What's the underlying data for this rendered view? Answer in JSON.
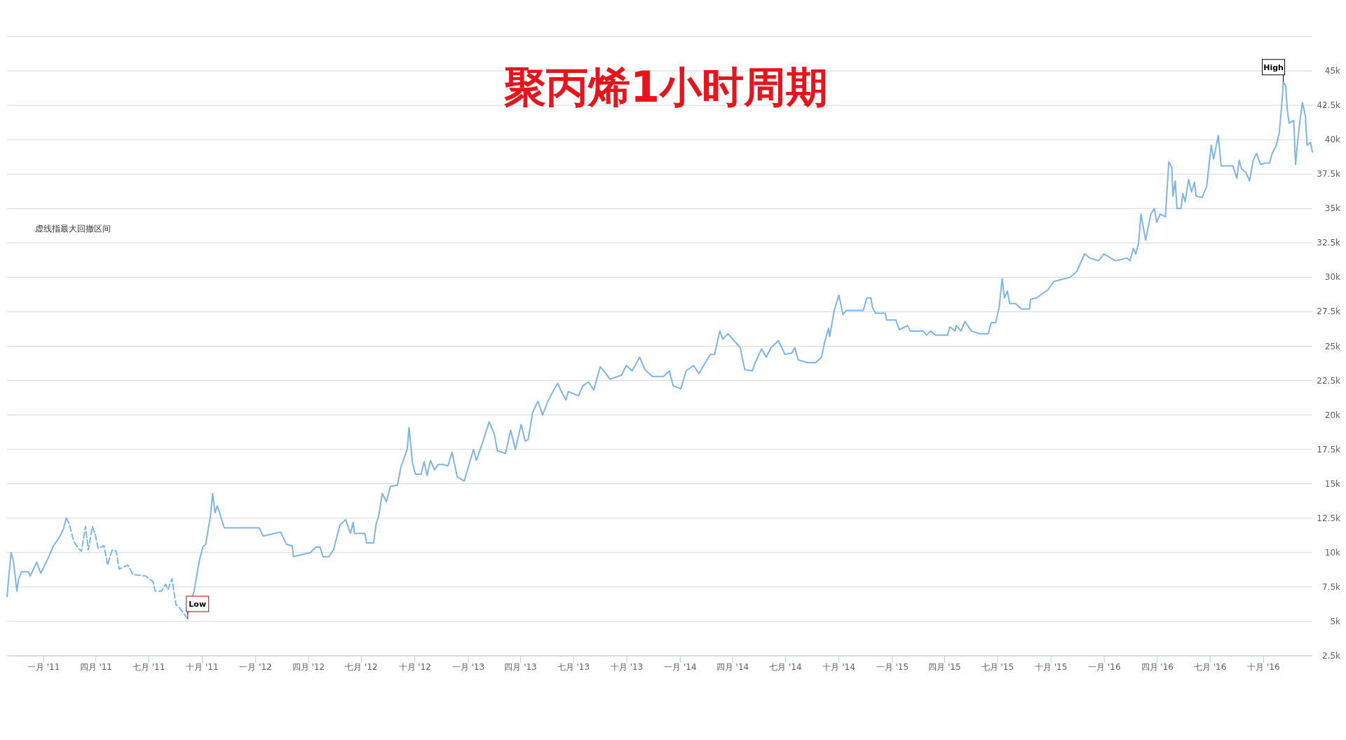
{
  "chart_data": {
    "type": "line",
    "title": "聚丙烯1小时周期",
    "xlim": [
      "2010-10-30",
      "2016-12-24"
    ],
    "ylim": [
      2500,
      47500
    ],
    "xticks": [
      {
        "value": "2011-01-01",
        "label": "一月 '11"
      },
      {
        "value": "2011-04-01",
        "label": "四月 '11"
      },
      {
        "value": "2011-07-01",
        "label": "七月 '11"
      },
      {
        "value": "2011-10-01",
        "label": "十月 '11"
      },
      {
        "value": "2012-01-01",
        "label": "一月 '12"
      },
      {
        "value": "2012-04-01",
        "label": "四月 '12"
      },
      {
        "value": "2012-07-01",
        "label": "七月 '12"
      },
      {
        "value": "2012-10-01",
        "label": "十月 '12"
      },
      {
        "value": "2013-01-01",
        "label": "一月 '13"
      },
      {
        "value": "2013-04-01",
        "label": "四月 '13"
      },
      {
        "value": "2013-07-01",
        "label": "七月 '13"
      },
      {
        "value": "2013-10-01",
        "label": "十月 '13"
      },
      {
        "value": "2014-01-01",
        "label": "一月 '14"
      },
      {
        "value": "2014-04-01",
        "label": "四月 '14"
      },
      {
        "value": "2014-07-01",
        "label": "七月 '14"
      },
      {
        "value": "2014-10-01",
        "label": "十月 '14"
      },
      {
        "value": "2015-01-01",
        "label": "一月 '15"
      },
      {
        "value": "2015-04-01",
        "label": "四月 '15"
      },
      {
        "value": "2015-07-01",
        "label": "七月 '15"
      },
      {
        "value": "2015-10-01",
        "label": "十月 '15"
      },
      {
        "value": "2016-01-01",
        "label": "一月 '16"
      },
      {
        "value": "2016-04-01",
        "label": "四月 '16"
      },
      {
        "value": "2016-07-01",
        "label": "七月 '16"
      },
      {
        "value": "2016-10-01",
        "label": "十月 '16"
      }
    ],
    "yticks": [
      {
        "value": 2500,
        "label": "2.5k"
      },
      {
        "value": 5000,
        "label": "5k"
      },
      {
        "value": 7500,
        "label": "7.5k"
      },
      {
        "value": 10000,
        "label": "10k"
      },
      {
        "value": 12500,
        "label": "12.5k"
      },
      {
        "value": 15000,
        "label": "15k"
      },
      {
        "value": 17500,
        "label": "17.5k"
      },
      {
        "value": 20000,
        "label": "20k"
      },
      {
        "value": 22500,
        "label": "22.5k"
      },
      {
        "value": 25000,
        "label": "25k"
      },
      {
        "value": 27500,
        "label": "27.5k"
      },
      {
        "value": 30000,
        "label": "30k"
      },
      {
        "value": 32500,
        "label": "32.5k"
      },
      {
        "value": 35000,
        "label": "35k"
      },
      {
        "value": 37500,
        "label": "37.5k"
      },
      {
        "value": 40000,
        "label": "40k"
      },
      {
        "value": 42500,
        "label": "42.5k"
      },
      {
        "value": 45000,
        "label": "45k"
      },
      {
        "value": 47500,
        "label": null
      }
    ],
    "grid": "y",
    "series": [
      {
        "color": "#7cb5ec",
        "line_style": "solid",
        "x": [
          "2010-10-30",
          "2010-11-06",
          "2010-11-10",
          "2010-11-16",
          "2010-11-19",
          "2010-11-24",
          "2010-12-06",
          "2010-12-09",
          "2010-12-20",
          "2010-12-27",
          "2011-01-09",
          "2011-01-18",
          "2011-01-28",
          "2011-02-04",
          "2011-02-09"
        ],
        "values": [
          6800,
          10000,
          9400,
          7200,
          8100,
          8600,
          8600,
          8300,
          9300,
          8500,
          9600,
          10500,
          11100,
          11700,
          12500
        ]
      },
      {
        "color": "#7cb5ec",
        "line_style": "dashed",
        "x": [
          "2011-02-09",
          "2011-02-14",
          "2011-02-22",
          "2011-03-02",
          "2011-03-07",
          "2011-03-14",
          "2011-03-19",
          "2011-03-26",
          "2011-03-31",
          "2011-04-05",
          "2011-04-15",
          "2011-04-21",
          "2011-04-29",
          "2011-05-06",
          "2011-05-11",
          "2011-05-26",
          "2011-06-04",
          "2011-06-26",
          "2011-07-08",
          "2011-07-12",
          "2011-07-23",
          "2011-07-30",
          "2011-08-03",
          "2011-08-10",
          "2011-08-17",
          "2011-08-21",
          "2011-09-06"
        ],
        "values": [
          12500,
          12100,
          10800,
          10300,
          10100,
          11900,
          10200,
          11900,
          11300,
          10300,
          10500,
          9100,
          10200,
          10100,
          8800,
          9100,
          8400,
          8300,
          7900,
          7200,
          7200,
          7700,
          7300,
          8100,
          6200,
          6100,
          5200
        ]
      },
      {
        "color": "#7cb5ec",
        "line_style": "solid",
        "x": [
          "2011-09-06",
          "2011-09-17",
          "2011-09-26",
          "2011-10-02",
          "2011-10-07",
          "2011-10-15",
          "2011-10-19",
          "2011-10-23",
          "2011-10-27",
          "2011-11-08",
          "2011-11-14",
          "2012-01-07",
          "2012-01-14",
          "2012-02-03",
          "2012-02-13",
          "2012-02-23",
          "2012-03-04",
          "2012-03-06",
          "2012-04-04",
          "2012-04-14",
          "2012-04-21",
          "2012-04-26",
          "2012-05-06",
          "2012-05-14",
          "2012-05-25",
          "2012-06-04",
          "2012-06-12",
          "2012-06-17",
          "2012-06-19",
          "2012-07-07",
          "2012-07-10",
          "2012-07-22",
          "2012-07-26",
          "2012-07-31",
          "2012-08-06",
          "2012-08-13",
          "2012-08-20",
          "2012-09-01",
          "2012-09-07",
          "2012-09-18",
          "2012-09-21",
          "2012-09-27",
          "2012-10-02",
          "2012-10-12",
          "2012-10-17",
          "2012-10-22",
          "2012-10-28",
          "2012-11-04",
          "2012-11-10",
          "2012-11-19",
          "2012-11-27",
          "2012-12-04",
          "2012-12-13",
          "2012-12-25",
          "2013-01-10",
          "2013-01-15",
          "2013-01-25",
          "2013-02-06",
          "2013-02-15",
          "2013-02-20",
          "2013-03-06",
          "2013-03-15",
          "2013-03-23",
          "2013-04-02",
          "2013-04-09",
          "2013-04-14",
          "2013-04-22",
          "2013-05-01",
          "2013-05-09",
          "2013-05-18",
          "2013-05-28",
          "2013-06-04",
          "2013-06-09",
          "2013-06-18",
          "2013-06-22",
          "2013-07-10",
          "2013-07-17",
          "2013-07-27",
          "2013-08-05",
          "2013-08-16",
          "2013-08-26",
          "2013-09-02",
          "2013-09-22",
          "2013-09-30",
          "2013-10-10",
          "2013-10-23",
          "2013-11-01",
          "2013-11-14",
          "2013-12-03",
          "2013-12-13",
          "2013-12-20",
          "2014-01-02",
          "2014-01-11",
          "2014-01-24",
          "2014-02-02",
          "2014-02-13",
          "2014-02-22",
          "2014-03-01",
          "2014-03-10",
          "2014-03-15",
          "2014-03-24",
          "2014-04-14",
          "2014-04-22",
          "2014-05-05",
          "2014-05-10",
          "2014-05-21",
          "2014-05-29",
          "2014-06-06",
          "2014-06-19",
          "2014-06-30",
          "2014-07-12",
          "2014-07-17",
          "2014-07-23",
          "2014-08-08",
          "2014-08-22",
          "2014-09-01",
          "2014-09-07",
          "2014-09-13",
          "2014-09-15",
          "2014-09-23",
          "2014-10-01",
          "2014-10-08",
          "2014-10-14",
          "2014-11-12",
          "2014-11-18",
          "2014-11-25",
          "2014-11-28",
          "2014-12-03",
          "2014-12-20",
          "2014-12-22",
          "2015-01-07",
          "2015-01-13",
          "2015-01-27",
          "2015-02-01",
          "2015-02-23",
          "2015-03-01",
          "2015-03-08",
          "2015-03-16",
          "2015-04-06",
          "2015-04-10",
          "2015-04-19",
          "2015-04-21",
          "2015-04-29",
          "2015-05-06",
          "2015-05-17",
          "2015-05-31",
          "2015-06-15",
          "2015-06-20",
          "2015-06-28",
          "2015-07-04",
          "2015-07-09",
          "2015-07-13",
          "2015-07-18",
          "2015-07-22",
          "2015-08-01",
          "2015-08-11",
          "2015-08-25",
          "2015-08-27",
          "2015-09-06",
          "2015-09-26",
          "2015-10-06",
          "2015-11-03",
          "2015-11-14",
          "2015-11-28",
          "2015-12-07",
          "2015-12-22",
          "2015-12-31",
          "2016-01-20",
          "2016-02-09",
          "2016-02-14",
          "2016-02-20",
          "2016-02-24",
          "2016-02-29",
          "2016-03-04",
          "2016-03-12",
          "2016-03-21",
          "2016-03-27",
          "2016-03-31",
          "2016-04-06",
          "2016-04-15",
          "2016-04-21",
          "2016-04-26",
          "2016-04-28",
          "2016-05-02",
          "2016-05-05",
          "2016-05-12",
          "2016-05-15",
          "2016-05-19",
          "2016-05-25",
          "2016-05-30",
          "2016-06-04",
          "2016-06-07",
          "2016-06-17",
          "2016-06-25",
          "2016-07-03",
          "2016-07-07",
          "2016-07-15",
          "2016-07-20",
          "2016-08-09",
          "2016-08-16",
          "2016-08-20",
          "2016-08-24",
          "2016-09-01",
          "2016-09-07",
          "2016-09-13",
          "2016-09-19",
          "2016-09-26",
          "2016-10-04",
          "2016-10-11",
          "2016-10-16",
          "2016-10-23",
          "2016-10-28",
          "2016-11-02",
          "2016-11-04",
          "2016-11-08",
          "2016-11-11",
          "2016-11-14",
          "2016-11-22",
          "2016-11-25",
          "2016-11-28",
          "2016-12-03",
          "2016-12-07",
          "2016-12-12",
          "2016-12-15",
          "2016-12-21",
          "2016-12-24"
        ],
        "values": [
          5500,
          7200,
          9400,
          10400,
          10600,
          12600,
          14300,
          12900,
          13400,
          11800,
          11800,
          11800,
          11200,
          11400,
          11500,
          10600,
          10500,
          9700,
          10000,
          10400,
          10400,
          9700,
          9700,
          10200,
          12000,
          12400,
          11400,
          12200,
          11400,
          11400,
          10700,
          10700,
          12000,
          12700,
          14300,
          13700,
          14800,
          14900,
          16200,
          17500,
          19100,
          16500,
          15700,
          15700,
          16600,
          15600,
          16700,
          16000,
          16400,
          16400,
          16300,
          17300,
          15500,
          15200,
          17500,
          16700,
          17900,
          19500,
          18600,
          17400,
          17200,
          18900,
          17500,
          19300,
          18100,
          18200,
          20200,
          21000,
          20000,
          21000,
          21800,
          22300,
          21800,
          21100,
          21700,
          21400,
          22100,
          22400,
          21800,
          23500,
          23000,
          22600,
          22900,
          23600,
          23200,
          24200,
          23300,
          22800,
          22800,
          23200,
          22100,
          21900,
          23200,
          23600,
          23000,
          23800,
          24400,
          24400,
          26100,
          25500,
          25900,
          24900,
          23300,
          23200,
          23800,
          24800,
          24200,
          24900,
          25400,
          24400,
          24500,
          24900,
          24000,
          23800,
          23800,
          24200,
          25400,
          26300,
          25700,
          27600,
          28700,
          27300,
          27600,
          27600,
          28500,
          28500,
          27800,
          27400,
          27400,
          26900,
          26900,
          26200,
          26500,
          26100,
          26100,
          25800,
          26100,
          25800,
          25800,
          26400,
          26100,
          26500,
          26100,
          26800,
          26100,
          25900,
          25900,
          26700,
          26700,
          27900,
          29900,
          28500,
          29000,
          28100,
          28100,
          27700,
          27700,
          28400,
          28500,
          29100,
          29700,
          30000,
          30400,
          31700,
          31400,
          31200,
          31700,
          31200,
          31400,
          31200,
          32100,
          31700,
          32500,
          34600,
          32700,
          34600,
          35000,
          34000,
          34600,
          34400,
          38400,
          38000,
          35900,
          37000,
          35000,
          35000,
          36100,
          35500,
          37100,
          36200,
          36900,
          35900,
          35800,
          36600,
          39600,
          38600,
          40300,
          38100,
          38100,
          37200,
          38500,
          37900,
          37600,
          37000,
          38500,
          39000,
          38200,
          38300,
          38300,
          39000,
          39600,
          40500,
          42900,
          44200,
          43900,
          42100,
          41200,
          41400,
          38200,
          39600,
          41500,
          42700,
          41700,
          39600,
          39800,
          39100
        ]
      }
    ],
    "annotations": [
      "虚线指最大回撤区间",
      {
        "text": "Low",
        "x": "2011-09-06",
        "y": 5200
      },
      {
        "text": "High",
        "x": "2016-11-04",
        "y": 44200
      }
    ]
  }
}
